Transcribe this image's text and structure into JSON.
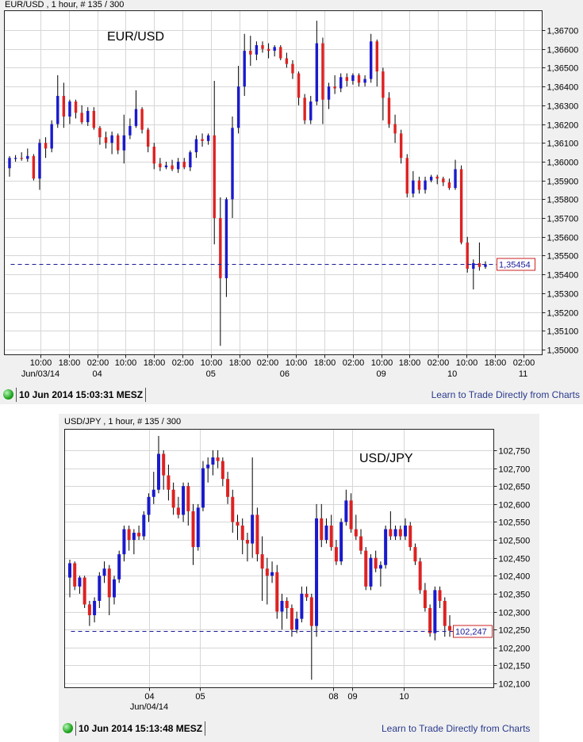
{
  "colors": {
    "up": "#1a1acc",
    "down": "#dd2222",
    "wick": "#000000",
    "grid": "#d6d6d6",
    "price_line": "#1a1a99",
    "price_box": "#cc2222"
  },
  "chart_data": [
    {
      "type": "candlestick",
      "header": "EUR/USD , 1 hour, # 135 / 300",
      "title": "EUR/USD",
      "ylim": [
        1.35,
        1.3675
      ],
      "y_ticks": [
        1.35,
        1.351,
        1.352,
        1.353,
        1.354,
        1.355,
        1.356,
        1.357,
        1.358,
        1.359,
        1.36,
        1.361,
        1.362,
        1.363,
        1.364,
        1.365,
        1.366,
        1.367
      ],
      "y_tick_labels": [
        "1,35000",
        "1,35100",
        "1,35200",
        "1,35300",
        "1,35400",
        "1,35500",
        "1,35600",
        "1,35700",
        "1,35800",
        "1,35900",
        "1,36000",
        "1,36100",
        "1,36200",
        "1,36300",
        "1,36400",
        "1,36500",
        "1,36600",
        "1,36700"
      ],
      "x_tick_labels": [
        "10:00",
        "18:00",
        "02:00",
        "10:00",
        "18:00",
        "02:00",
        "10:00",
        "18:00",
        "02:00",
        "10:00",
        "18:00",
        "02:00",
        "10:00",
        "18:00",
        "02:00",
        "10:00",
        "18:00",
        "02:00"
      ],
      "x_date_labels": [
        {
          "tick": 0,
          "label": "Jun/03/14"
        },
        {
          "tick": 2,
          "label": "04"
        },
        {
          "tick": 6,
          "label": "05"
        },
        {
          "tick": 8.6,
          "label": "06"
        },
        {
          "tick": 12,
          "label": "09"
        },
        {
          "tick": 14.5,
          "label": "10"
        },
        {
          "tick": 17,
          "label": "11"
        }
      ],
      "current_price": 1.35454,
      "current_price_label": "1,35454",
      "grid": true,
      "ohlc": [
        [
          1.35965,
          1.3603,
          1.3592,
          1.3602
        ],
        [
          1.36015,
          1.36035,
          1.36,
          1.3602
        ],
        [
          1.3602,
          1.3605,
          1.36005,
          1.36015
        ],
        [
          1.36015,
          1.3607,
          1.36,
          1.3603
        ],
        [
          1.3603,
          1.3604,
          1.359,
          1.3591
        ],
        [
          1.3591,
          1.3612,
          1.3585,
          1.361
        ],
        [
          1.361,
          1.3613,
          1.3602,
          1.3607
        ],
        [
          1.3607,
          1.3622,
          1.3605,
          1.362
        ],
        [
          1.362,
          1.3646,
          1.3618,
          1.3635
        ],
        [
          1.3635,
          1.3642,
          1.3618,
          1.3624
        ],
        [
          1.3624,
          1.3633,
          1.362,
          1.3632
        ],
        [
          1.3632,
          1.3633,
          1.3623,
          1.3626
        ],
        [
          1.3626,
          1.363,
          1.362,
          1.3621
        ],
        [
          1.3621,
          1.3629,
          1.3619,
          1.3627
        ],
        [
          1.3627,
          1.3629,
          1.3617,
          1.3618
        ],
        [
          1.3618,
          1.3619,
          1.3609,
          1.3613
        ],
        [
          1.3613,
          1.3616,
          1.3607,
          1.361
        ],
        [
          1.361,
          1.3616,
          1.3604,
          1.3614
        ],
        [
          1.3614,
          1.3615,
          1.3604,
          1.3606
        ],
        [
          1.3606,
          1.3625,
          1.3599,
          1.3614
        ],
        [
          1.3614,
          1.3623,
          1.3612,
          1.3619
        ],
        [
          1.3619,
          1.3638,
          1.3618,
          1.3628
        ],
        [
          1.3628,
          1.3629,
          1.3615,
          1.3617
        ],
        [
          1.3617,
          1.3618,
          1.3605,
          1.3608
        ],
        [
          1.3608,
          1.361,
          1.3596,
          1.3599
        ],
        [
          1.3599,
          1.3602,
          1.3595,
          1.3597
        ],
        [
          1.3597,
          1.36,
          1.3596,
          1.3598
        ],
        [
          1.3598,
          1.3601,
          1.3595,
          1.3596
        ],
        [
          1.3596,
          1.3602,
          1.3594,
          1.36
        ],
        [
          1.36,
          1.3602,
          1.3596,
          1.3597
        ],
        [
          1.3597,
          1.3606,
          1.3595,
          1.3605
        ],
        [
          1.3605,
          1.3614,
          1.3602,
          1.3612
        ],
        [
          1.3612,
          1.3615,
          1.3608,
          1.3611
        ],
        [
          1.3611,
          1.3615,
          1.3609,
          1.3614
        ],
        [
          1.3614,
          1.3643,
          1.3556,
          1.357
        ],
        [
          1.357,
          1.3581,
          1.3502,
          1.3538
        ],
        [
          1.3538,
          1.3581,
          1.3528,
          1.358
        ],
        [
          1.358,
          1.3624,
          1.357,
          1.3618
        ],
        [
          1.3618,
          1.3651,
          1.3615,
          1.364
        ],
        [
          1.364,
          1.3668,
          1.3635,
          1.3659
        ],
        [
          1.3659,
          1.3667,
          1.3651,
          1.3657
        ],
        [
          1.3657,
          1.3664,
          1.3654,
          1.3662
        ],
        [
          1.3662,
          1.3664,
          1.3658,
          1.366
        ],
        [
          1.366,
          1.3663,
          1.3655,
          1.3659
        ],
        [
          1.3659,
          1.3662,
          1.3656,
          1.3661
        ],
        [
          1.3661,
          1.3662,
          1.3654,
          1.3655
        ],
        [
          1.3655,
          1.3658,
          1.365,
          1.3652
        ],
        [
          1.3652,
          1.3654,
          1.3644,
          1.3647
        ],
        [
          1.3647,
          1.3648,
          1.363,
          1.3634
        ],
        [
          1.3634,
          1.3636,
          1.362,
          1.3622
        ],
        [
          1.3622,
          1.3635,
          1.362,
          1.3632
        ],
        [
          1.3632,
          1.3675,
          1.363,
          1.3663
        ],
        [
          1.3663,
          1.3666,
          1.362,
          1.3633
        ],
        [
          1.3633,
          1.3642,
          1.3628,
          1.364
        ],
        [
          1.364,
          1.3646,
          1.3636,
          1.3639
        ],
        [
          1.3639,
          1.3647,
          1.3637,
          1.3645
        ],
        [
          1.3645,
          1.3647,
          1.364,
          1.3643
        ],
        [
          1.3643,
          1.3647,
          1.3641,
          1.3646
        ],
        [
          1.3646,
          1.3647,
          1.364,
          1.3642
        ],
        [
          1.3642,
          1.3646,
          1.364,
          1.3644
        ],
        [
          1.3644,
          1.3668,
          1.3642,
          1.3664
        ],
        [
          1.3664,
          1.3665,
          1.364,
          1.3648
        ],
        [
          1.3648,
          1.365,
          1.3622,
          1.3634
        ],
        [
          1.3634,
          1.3637,
          1.3618,
          1.362
        ],
        [
          1.362,
          1.3625,
          1.361,
          1.3615
        ],
        [
          1.3615,
          1.3617,
          1.3599,
          1.3602
        ],
        [
          1.3602,
          1.3604,
          1.3581,
          1.3583
        ],
        [
          1.3583,
          1.3595,
          1.3581,
          1.359
        ],
        [
          1.359,
          1.3592,
          1.3583,
          1.3585
        ],
        [
          1.3585,
          1.3592,
          1.3583,
          1.359
        ],
        [
          1.359,
          1.3593,
          1.3589,
          1.3592
        ],
        [
          1.3592,
          1.3593,
          1.3588,
          1.3591
        ],
        [
          1.3591,
          1.3592,
          1.3587,
          1.3589
        ],
        [
          1.3589,
          1.3591,
          1.3585,
          1.3586
        ],
        [
          1.3586,
          1.3601,
          1.3585,
          1.3596
        ],
        [
          1.3596,
          1.3598,
          1.3556,
          1.3557
        ],
        [
          1.3557,
          1.356,
          1.3541,
          1.3543
        ],
        [
          1.3543,
          1.3548,
          1.3532,
          1.3546
        ],
        [
          1.3546,
          1.3557,
          1.3542,
          1.3544
        ],
        [
          1.3544,
          1.3547,
          1.3543,
          1.35454
        ]
      ]
    },
    {
      "type": "candlestick",
      "header": "USD/JPY , 1 hour, # 135 / 300",
      "title": "USD/JPY",
      "ylim": [
        102.09,
        102.8
      ],
      "y_ticks": [
        102.1,
        102.15,
        102.2,
        102.25,
        102.3,
        102.35,
        102.4,
        102.45,
        102.5,
        102.55,
        102.6,
        102.65,
        102.7,
        102.75
      ],
      "y_tick_labels": [
        "102,100",
        "102,150",
        "102,200",
        "102,250",
        "102,300",
        "102,350",
        "102,400",
        "102,450",
        "102,500",
        "102,550",
        "102,600",
        "102,650",
        "102,700",
        "102,750"
      ],
      "x_tick_labels": [
        "04",
        "05",
        "08",
        "09",
        "10"
      ],
      "x_date_labels": [
        {
          "tick": 0,
          "label": "Jun/04/14"
        }
      ],
      "current_price": 102.247,
      "current_price_label": "102,247",
      "grid": true,
      "ohlc": [
        [
          102.395,
          102.445,
          102.34,
          102.435
        ],
        [
          102.435,
          102.44,
          102.36,
          102.37
        ],
        [
          102.37,
          102.4,
          102.35,
          102.395
        ],
        [
          102.395,
          102.4,
          102.31,
          102.32
        ],
        [
          102.32,
          102.33,
          102.26,
          102.29
        ],
        [
          102.29,
          102.34,
          102.27,
          102.33
        ],
        [
          102.33,
          102.41,
          102.31,
          102.4
        ],
        [
          102.4,
          102.44,
          102.38,
          102.42
        ],
        [
          102.42,
          102.43,
          102.29,
          102.34
        ],
        [
          102.34,
          102.4,
          102.32,
          102.39
        ],
        [
          102.39,
          102.47,
          102.38,
          102.46
        ],
        [
          102.46,
          102.54,
          102.44,
          102.53
        ],
        [
          102.53,
          102.54,
          102.47,
          102.5
        ],
        [
          102.5,
          102.53,
          102.46,
          102.52
        ],
        [
          102.52,
          102.54,
          102.5,
          102.51
        ],
        [
          102.51,
          102.58,
          102.5,
          102.57
        ],
        [
          102.57,
          102.63,
          102.55,
          102.62
        ],
        [
          102.62,
          102.69,
          102.6,
          102.64
        ],
        [
          102.64,
          102.79,
          102.63,
          102.74
        ],
        [
          102.74,
          102.75,
          102.64,
          102.68
        ],
        [
          102.68,
          102.71,
          102.61,
          102.64
        ],
        [
          102.64,
          102.66,
          102.57,
          102.59
        ],
        [
          102.59,
          102.62,
          102.56,
          102.57
        ],
        [
          102.57,
          102.66,
          102.55,
          102.65
        ],
        [
          102.65,
          102.66,
          102.54,
          102.58
        ],
        [
          102.58,
          102.6,
          102.43,
          102.48
        ],
        [
          102.48,
          102.6,
          102.47,
          102.59
        ],
        [
          102.59,
          102.72,
          102.58,
          102.7
        ],
        [
          102.7,
          102.73,
          102.66,
          102.71
        ],
        [
          102.71,
          102.75,
          102.68,
          102.73
        ],
        [
          102.73,
          102.75,
          102.7,
          102.72
        ],
        [
          102.72,
          102.73,
          102.65,
          102.67
        ],
        [
          102.67,
          102.69,
          102.6,
          102.62
        ],
        [
          102.62,
          102.64,
          102.52,
          102.55
        ],
        [
          102.55,
          102.57,
          102.5,
          102.54
        ],
        [
          102.54,
          102.56,
          102.46,
          102.5
        ],
        [
          102.5,
          102.52,
          102.44,
          102.49
        ],
        [
          102.49,
          102.73,
          102.45,
          102.57
        ],
        [
          102.57,
          102.59,
          102.44,
          102.46
        ],
        [
          102.46,
          102.51,
          102.33,
          102.42
        ],
        [
          102.42,
          102.45,
          102.32,
          102.4
        ],
        [
          102.4,
          102.44,
          102.38,
          102.41
        ],
        [
          102.41,
          102.43,
          102.28,
          102.3
        ],
        [
          102.3,
          102.35,
          102.25,
          102.33
        ],
        [
          102.33,
          102.34,
          102.28,
          102.31
        ],
        [
          102.31,
          102.32,
          102.23,
          102.25
        ],
        [
          102.25,
          102.3,
          102.24,
          102.28
        ],
        [
          102.28,
          102.37,
          102.27,
          102.35
        ],
        [
          102.35,
          102.37,
          102.33,
          102.34
        ],
        [
          102.34,
          102.35,
          102.11,
          102.26
        ],
        [
          102.26,
          102.6,
          102.23,
          102.56
        ],
        [
          102.56,
          102.6,
          102.48,
          102.5
        ],
        [
          102.5,
          102.56,
          102.49,
          102.54
        ],
        [
          102.54,
          102.57,
          102.47,
          102.48
        ],
        [
          102.48,
          102.5,
          102.43,
          102.44
        ],
        [
          102.44,
          102.56,
          102.43,
          102.55
        ],
        [
          102.55,
          102.64,
          102.54,
          102.61
        ],
        [
          102.61,
          102.63,
          102.52,
          102.53
        ],
        [
          102.53,
          102.57,
          102.5,
          102.51
        ],
        [
          102.51,
          102.53,
          102.46,
          102.47
        ],
        [
          102.47,
          102.48,
          102.36,
          102.37
        ],
        [
          102.37,
          102.46,
          102.36,
          102.45
        ],
        [
          102.45,
          102.47,
          102.41,
          102.42
        ],
        [
          102.42,
          102.44,
          102.37,
          102.43
        ],
        [
          102.43,
          102.54,
          102.42,
          102.53
        ],
        [
          102.53,
          102.58,
          102.5,
          102.51
        ],
        [
          102.51,
          102.54,
          102.5,
          102.53
        ],
        [
          102.53,
          102.54,
          102.5,
          102.51
        ],
        [
          102.51,
          102.56,
          102.5,
          102.54
        ],
        [
          102.54,
          102.55,
          102.47,
          102.48
        ],
        [
          102.48,
          102.49,
          102.43,
          102.44
        ],
        [
          102.44,
          102.45,
          102.35,
          102.36
        ],
        [
          102.36,
          102.38,
          102.3,
          102.31
        ],
        [
          102.31,
          102.32,
          102.23,
          102.24
        ],
        [
          102.24,
          102.37,
          102.22,
          102.36
        ],
        [
          102.36,
          102.37,
          102.31,
          102.33
        ],
        [
          102.33,
          102.34,
          102.23,
          102.26
        ],
        [
          102.26,
          102.29,
          102.23,
          102.247
        ]
      ]
    }
  ],
  "footers": [
    {
      "timestamp": "10 Jun 2014 15:03:31 MESZ",
      "link": "Learn to Trade Directly from Charts",
      "status_icon": "green-status-dot"
    },
    {
      "timestamp": "10 Jun 2014 15:13:48 MESZ",
      "link": "Learn to Trade Directly from Charts",
      "status_icon": "green-status-dot"
    }
  ]
}
